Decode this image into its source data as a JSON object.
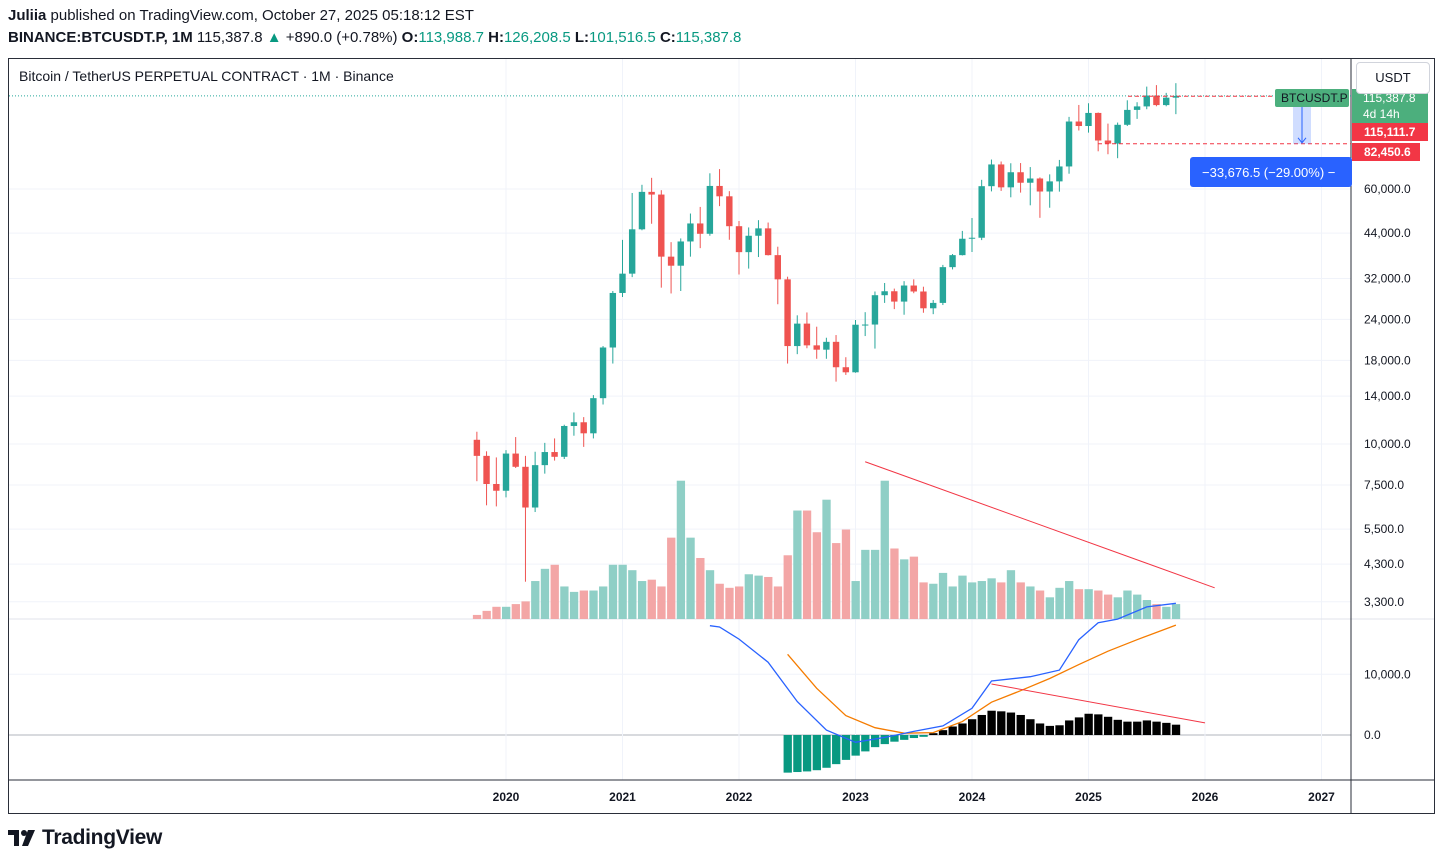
{
  "header": {
    "author": "Juliia",
    "published_text": "published on TradingView.com, October 27, 2025 05:18:12 EST",
    "symbol": "BINANCE:BTCUSDT.P, 1M",
    "last": "115,387.8",
    "change": "+890.0 (+0.78%)",
    "o_label": "O:",
    "o_value": "113,988.7",
    "h_label": "H:",
    "h_value": "126,208.5",
    "l_label": "L:",
    "l_value": "101,516.5",
    "c_label": "C:",
    "c_value": "115,387.8"
  },
  "chart_title": "Bitcoin / TetherUS PERPETUAL CONTRACT · 1M · Binance",
  "currency_button": "USDT",
  "branding": "TradingView",
  "colors": {
    "up": "#26a69a",
    "down": "#ef5350",
    "vol_up": "#8fcfc6",
    "vol_down": "#f3a6a6",
    "macd": "#2962ff",
    "signal": "#f57c00",
    "hist_pos": "#000000",
    "hist_neg": "#089981",
    "trend": "#f23645",
    "label_green": "#4caf7d",
    "label_red": "#f23645",
    "measure": "#2962ff"
  },
  "chart_data": {
    "type": "candlestick",
    "title": "Bitcoin / TetherUS PERPETUAL CONTRACT · 1M · Binance",
    "y_scale": "log",
    "y_ticks": [
      "60,000.0",
      "44,000.0",
      "32,000.0",
      "24,000.0",
      "18,000.0",
      "14,000.0",
      "10,000.0",
      "7,500.0",
      "5,500.0",
      "4,300.0",
      "3,300.0"
    ],
    "y_tick_values": [
      60000,
      44000,
      32000,
      24000,
      18000,
      14000,
      10000,
      7500,
      5500,
      4300,
      3300
    ],
    "x_ticks": [
      "2020",
      "2021",
      "2022",
      "2023",
      "2024",
      "2025",
      "2026",
      "2027"
    ],
    "x_tick_years": [
      2020,
      2021,
      2022,
      2023,
      2024,
      2025,
      2026,
      2027
    ],
    "price_labels": {
      "symbol_tag": "BTCUSDT.P",
      "current_price": "115,387.8",
      "countdown": "4d 14h",
      "level_1": "115,111.7",
      "level_2": "82,450.6"
    },
    "measure_label": "−33,676.5 (−29.00%) −",
    "indicator_ticks": [
      "10,000.0",
      "0.0"
    ],
    "indicator_tick_values": [
      10000,
      0
    ],
    "ohlc": [
      [
        2019.75,
        10300,
        10900,
        7700,
        9200
      ],
      [
        2019.833,
        9200,
        9500,
        6500,
        7550
      ],
      [
        2019.917,
        7550,
        9100,
        6450,
        7200
      ],
      [
        2020.0,
        7200,
        9580,
        6870,
        9350
      ],
      [
        2020.083,
        9350,
        10500,
        8450,
        8520
      ],
      [
        2020.167,
        8520,
        9200,
        3800,
        6400
      ],
      [
        2020.25,
        6400,
        9470,
        6200,
        8620
      ],
      [
        2020.333,
        8620,
        10080,
        8120,
        9450
      ],
      [
        2020.417,
        9450,
        10400,
        8900,
        9140
      ],
      [
        2020.5,
        9140,
        11450,
        9000,
        11350
      ],
      [
        2020.583,
        11350,
        12480,
        10600,
        11650
      ],
      [
        2020.667,
        11650,
        12080,
        9800,
        10780
      ],
      [
        2020.75,
        10780,
        14100,
        10400,
        13800
      ],
      [
        2020.833,
        13800,
        19900,
        13200,
        19700
      ],
      [
        2020.917,
        19700,
        29300,
        17600,
        28900
      ],
      [
        2021.0,
        28900,
        41950,
        28100,
        33100
      ],
      [
        2021.083,
        33100,
        58350,
        32300,
        45200
      ],
      [
        2021.167,
        45200,
        61800,
        44900,
        58800
      ],
      [
        2021.25,
        58800,
        64900,
        47000,
        57700
      ],
      [
        2021.333,
        57700,
        59500,
        30000,
        37300
      ],
      [
        2021.417,
        37300,
        41300,
        28800,
        35000
      ],
      [
        2021.5,
        35000,
        42400,
        29300,
        41500
      ],
      [
        2021.583,
        41500,
        50500,
        37300,
        47100
      ],
      [
        2021.667,
        47100,
        52900,
        39600,
        43800
      ],
      [
        2021.75,
        43800,
        67000,
        43200,
        61300
      ],
      [
        2021.833,
        61300,
        69000,
        53200,
        57000
      ],
      [
        2021.917,
        57000,
        59100,
        42000,
        46200
      ],
      [
        2022.0,
        46200,
        47900,
        32900,
        38500
      ],
      [
        2022.083,
        38500,
        45800,
        34300,
        43200
      ],
      [
        2022.167,
        43200,
        48200,
        37200,
        45500
      ],
      [
        2022.25,
        45500,
        47400,
        37600,
        37700
      ],
      [
        2022.333,
        37700,
        40000,
        26700,
        31800
      ],
      [
        2022.417,
        31800,
        32400,
        17600,
        19900
      ],
      [
        2022.5,
        19900,
        24700,
        18800,
        23300
      ],
      [
        2022.583,
        23300,
        25200,
        19600,
        20000
      ],
      [
        2022.667,
        20000,
        22800,
        18200,
        19400
      ],
      [
        2022.75,
        19400,
        21100,
        18200,
        20500
      ],
      [
        2022.833,
        20500,
        21500,
        15500,
        17150
      ],
      [
        2022.917,
        17150,
        18400,
        16250,
        16550
      ],
      [
        2023.0,
        16550,
        23900,
        16500,
        23120
      ],
      [
        2023.083,
        23120,
        25250,
        21350,
        23150
      ],
      [
        2023.167,
        23150,
        29200,
        19550,
        28450
      ],
      [
        2023.25,
        28450,
        31000,
        26950,
        29250
      ],
      [
        2023.333,
        29250,
        29800,
        25800,
        27200
      ],
      [
        2023.417,
        27200,
        31400,
        24800,
        30450
      ],
      [
        2023.5,
        30450,
        31800,
        28850,
        29200
      ],
      [
        2023.583,
        29200,
        30200,
        25150,
        25950
      ],
      [
        2023.667,
        25950,
        27500,
        24900,
        26950
      ],
      [
        2023.75,
        26950,
        35200,
        26550,
        34650
      ],
      [
        2023.833,
        34650,
        38000,
        34100,
        37700
      ],
      [
        2023.917,
        37700,
        44700,
        37600,
        42300
      ],
      [
        2024.0,
        42300,
        48950,
        38550,
        42600
      ],
      [
        2024.083,
        42600,
        64000,
        41900,
        61200
      ],
      [
        2024.167,
        61200,
        73800,
        59000,
        71300
      ],
      [
        2024.25,
        71300,
        72800,
        59200,
        60700
      ],
      [
        2024.333,
        60700,
        71900,
        56600,
        67500
      ],
      [
        2024.417,
        67500,
        72000,
        58500,
        62700
      ],
      [
        2024.5,
        62700,
        70000,
        53500,
        64600
      ],
      [
        2024.583,
        64600,
        65100,
        49000,
        58950
      ],
      [
        2024.667,
        58950,
        66500,
        52600,
        63300
      ],
      [
        2024.75,
        63300,
        73600,
        58900,
        70300
      ],
      [
        2024.833,
        70300,
        99600,
        66800,
        96400
      ],
      [
        2024.917,
        96400,
        108300,
        90500,
        93400
      ],
      [
        2025.0,
        93400,
        109600,
        89200,
        102400
      ],
      [
        2025.083,
        102400,
        102700,
        78200,
        84350
      ],
      [
        2025.167,
        84350,
        95000,
        76600,
        82550
      ],
      [
        2025.25,
        82550,
        95700,
        74500,
        94200
      ],
      [
        2025.333,
        94200,
        111900,
        93400,
        104600
      ],
      [
        2025.417,
        104600,
        110400,
        98200,
        107200
      ],
      [
        2025.5,
        107200,
        123200,
        105100,
        115700
      ],
      [
        2025.583,
        115700,
        124500,
        107300,
        108200
      ],
      [
        2025.667,
        108200,
        117900,
        107300,
        114000
      ],
      [
        2025.75,
        113988.7,
        126208.5,
        101516.5,
        115387.8
      ]
    ],
    "volume": [
      [
        2019.75,
        3150
      ],
      [
        2019.833,
        3300
      ],
      [
        2019.917,
        3450
      ],
      [
        2020.0,
        3450
      ],
      [
        2020.083,
        3550
      ],
      [
        2020.167,
        3650
      ],
      [
        2020.25,
        4400
      ],
      [
        2020.333,
        4850
      ],
      [
        2020.417,
        5000
      ],
      [
        2020.5,
        4200
      ],
      [
        2020.583,
        4000
      ],
      [
        2020.667,
        4050
      ],
      [
        2020.75,
        4050
      ],
      [
        2020.833,
        4200
      ],
      [
        2020.917,
        5000
      ],
      [
        2021.0,
        5000
      ],
      [
        2021.083,
        4800
      ],
      [
        2021.167,
        4400
      ],
      [
        2021.25,
        4450
      ],
      [
        2021.333,
        4200
      ],
      [
        2021.417,
        6000
      ],
      [
        2021.5,
        8100
      ],
      [
        2021.583,
        6000
      ],
      [
        2021.667,
        5250
      ],
      [
        2021.75,
        4800
      ],
      [
        2021.833,
        4300
      ],
      [
        2021.917,
        4150
      ],
      [
        2022.0,
        4200
      ],
      [
        2022.083,
        4650
      ],
      [
        2022.167,
        4600
      ],
      [
        2022.25,
        4550
      ],
      [
        2022.333,
        4200
      ],
      [
        2022.417,
        5350
      ],
      [
        2022.5,
        7000
      ],
      [
        2022.583,
        7000
      ],
      [
        2022.667,
        6200
      ],
      [
        2022.75,
        7400
      ],
      [
        2022.833,
        5800
      ],
      [
        2022.917,
        6300
      ],
      [
        2023.0,
        4400
      ],
      [
        2023.083,
        5550
      ],
      [
        2023.167,
        5550
      ],
      [
        2023.25,
        8100
      ],
      [
        2023.333,
        5600
      ],
      [
        2023.417,
        5200
      ],
      [
        2023.5,
        5300
      ],
      [
        2023.583,
        4350
      ],
      [
        2023.667,
        4300
      ],
      [
        2023.75,
        4700
      ],
      [
        2023.833,
        4200
      ],
      [
        2023.917,
        4600
      ],
      [
        2024.0,
        4350
      ],
      [
        2024.083,
        4400
      ],
      [
        2024.167,
        4500
      ],
      [
        2024.25,
        4350
      ],
      [
        2024.333,
        4800
      ],
      [
        2024.417,
        4350
      ],
      [
        2024.5,
        4200
      ],
      [
        2024.583,
        4050
      ],
      [
        2024.667,
        3800
      ],
      [
        2024.75,
        4150
      ],
      [
        2024.833,
        4400
      ],
      [
        2024.917,
        4100
      ],
      [
        2025.0,
        4100
      ],
      [
        2025.083,
        4050
      ],
      [
        2025.167,
        3900
      ],
      [
        2025.25,
        3800
      ],
      [
        2025.333,
        4050
      ],
      [
        2025.417,
        3900
      ],
      [
        2025.5,
        3700
      ],
      [
        2025.583,
        3550
      ],
      [
        2025.667,
        3450
      ],
      [
        2025.75,
        3550
      ]
    ],
    "macd_line": [
      [
        2021.75,
        18000
      ],
      [
        2021.833,
        17800
      ],
      [
        2022.0,
        15800
      ],
      [
        2022.25,
        12000
      ],
      [
        2022.5,
        5500
      ],
      [
        2022.75,
        800
      ],
      [
        2023.0,
        -1200
      ],
      [
        2023.25,
        -400
      ],
      [
        2023.5,
        600
      ],
      [
        2023.75,
        1500
      ],
      [
        2024.0,
        4400
      ],
      [
        2024.167,
        8900
      ],
      [
        2024.5,
        9600
      ],
      [
        2024.75,
        10700
      ],
      [
        2024.917,
        15700
      ],
      [
        2025.083,
        18500
      ],
      [
        2025.25,
        19100
      ],
      [
        2025.5,
        21100
      ],
      [
        2025.75,
        21700
      ]
    ],
    "signal_line": [
      [
        2022.417,
        13300
      ],
      [
        2022.667,
        7700
      ],
      [
        2022.917,
        3200
      ],
      [
        2023.167,
        1200
      ],
      [
        2023.417,
        300
      ],
      [
        2023.667,
        400
      ],
      [
        2023.917,
        2200
      ],
      [
        2024.167,
        5400
      ],
      [
        2024.417,
        7300
      ],
      [
        2024.667,
        9300
      ],
      [
        2024.917,
        11600
      ],
      [
        2025.167,
        13800
      ],
      [
        2025.417,
        15700
      ],
      [
        2025.75,
        18100
      ]
    ],
    "histogram": [
      [
        2022.417,
        -6200
      ],
      [
        2022.5,
        -6100
      ],
      [
        2022.583,
        -6000
      ],
      [
        2022.667,
        -5800
      ],
      [
        2022.75,
        -5400
      ],
      [
        2022.833,
        -4800
      ],
      [
        2022.917,
        -4100
      ],
      [
        2023.0,
        -3400
      ],
      [
        2023.083,
        -2700
      ],
      [
        2023.167,
        -2000
      ],
      [
        2023.25,
        -1500
      ],
      [
        2023.333,
        -1100
      ],
      [
        2023.417,
        -800
      ],
      [
        2023.5,
        -500
      ],
      [
        2023.583,
        -300
      ],
      [
        2023.667,
        300
      ],
      [
        2023.75,
        800
      ],
      [
        2023.833,
        1400
      ],
      [
        2023.917,
        1900
      ],
      [
        2024.0,
        2600
      ],
      [
        2024.083,
        3300
      ],
      [
        2024.167,
        4000
      ],
      [
        2024.25,
        3900
      ],
      [
        2024.333,
        3700
      ],
      [
        2024.417,
        3300
      ],
      [
        2024.5,
        2600
      ],
      [
        2024.583,
        1900
      ],
      [
        2024.667,
        1500
      ],
      [
        2024.75,
        1600
      ],
      [
        2024.833,
        2400
      ],
      [
        2024.917,
        2900
      ],
      [
        2025.0,
        3500
      ],
      [
        2025.083,
        3400
      ],
      [
        2025.167,
        3000
      ],
      [
        2025.25,
        2500
      ],
      [
        2025.333,
        2200
      ],
      [
        2025.417,
        2200
      ],
      [
        2025.5,
        2400
      ],
      [
        2025.583,
        2200
      ],
      [
        2025.667,
        2000
      ],
      [
        2025.75,
        1700
      ]
    ],
    "trendlines": [
      {
        "pane": "volume",
        "from": [
          2023.083,
          8800
        ],
        "to": [
          2026.083,
          4150
        ]
      },
      {
        "pane": "macd",
        "from": [
          2024.167,
          8400
        ],
        "to": [
          2026.0,
          2000
        ]
      }
    ]
  }
}
